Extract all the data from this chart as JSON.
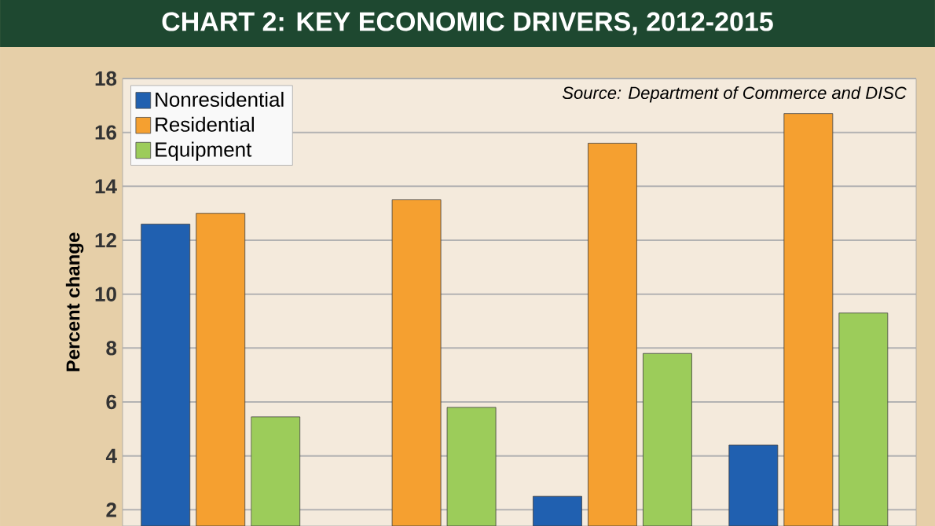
{
  "chart_data": {
    "type": "bar",
    "title": "CHART 2: KEY ECONOMIC DRIVERS, 2012-2015",
    "ylabel": "Percent change",
    "annotations": [
      "Source: Department of Commerce and DISC"
    ],
    "categories": [
      null,
      null,
      null,
      null
    ],
    "series": [
      {
        "name": "Nonresidential",
        "color": "#2060b0",
        "values": [
          12.6,
          null,
          2.5,
          4.4
        ]
      },
      {
        "name": "Residential",
        "color": "#f5a030",
        "values": [
          13.0,
          13.5,
          15.6,
          16.7
        ]
      },
      {
        "name": "Equipment",
        "color": "#9ccc5a",
        "values": [
          5.45,
          5.8,
          7.8,
          9.3
        ]
      }
    ],
    "ylim": [
      1.4,
      18
    ],
    "yticks": [
      2,
      4,
      6,
      8,
      10,
      12,
      14,
      16,
      18
    ],
    "grid": "y",
    "legend": "top left"
  }
}
